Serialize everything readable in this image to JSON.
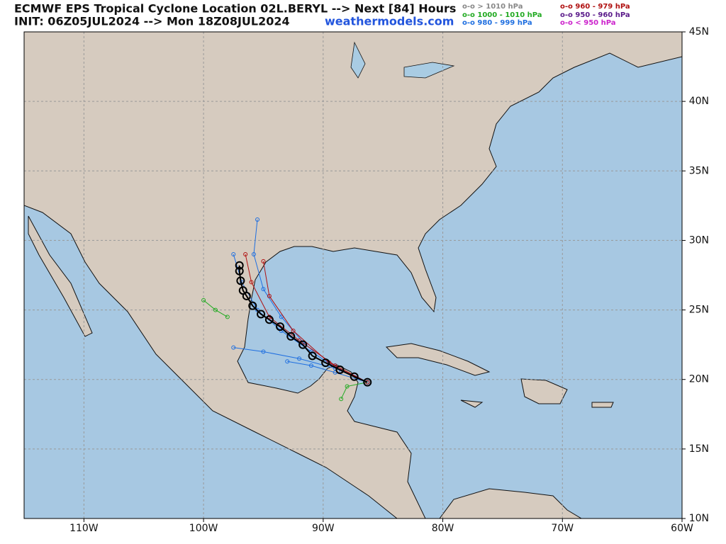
{
  "map": {
    "title": "ECMWF EPS Tropical Cyclone Location 02L.BERYL --> Next [84] Hours",
    "subtitle": "INIT: 06Z05JUL2024 --> Mon 18Z08JUL2024",
    "watermark": "weathermodels.com",
    "legend": [
      {
        "label": "o-o > 1010 hPa",
        "color": "#888888"
      },
      {
        "label": "o-o 1000 - 1010 hPa",
        "color": "#22aa22"
      },
      {
        "label": "o-o 980 - 999 hPa",
        "color": "#1f6fe0"
      },
      {
        "label": "o-o 960 - 979 hPa",
        "color": "#b01010"
      },
      {
        "label": "o-o 950 - 960 hPa",
        "color": "#5a1a8a"
      },
      {
        "label": "o-o < 950 hPa",
        "color": "#cc22cc"
      }
    ],
    "xlim": [
      -115,
      -60
    ],
    "ylim": [
      10,
      45
    ],
    "xticks": [
      {
        "value": -110,
        "label": "110W"
      },
      {
        "value": -100,
        "label": "100W"
      },
      {
        "value": -90,
        "label": "90W"
      },
      {
        "value": -80,
        "label": "80W"
      },
      {
        "value": -70,
        "label": "70W"
      },
      {
        "value": -60,
        "label": "60W"
      }
    ],
    "yticks": [
      {
        "value": 45,
        "label": "45N"
      },
      {
        "value": 40,
        "label": "40N"
      },
      {
        "value": 35,
        "label": "35N"
      },
      {
        "value": 30,
        "label": "30N"
      },
      {
        "value": 25,
        "label": "25N"
      },
      {
        "value": 20,
        "label": "20N"
      },
      {
        "value": 15,
        "label": "15N"
      },
      {
        "value": 10,
        "label": "10N"
      }
    ],
    "tracks": [
      {
        "color": "#1f6fe0",
        "lon": [
          -86.3,
          -89,
          -91.5,
          -93.5,
          -95,
          -95.8,
          -95.5
        ],
        "lat": [
          19.8,
          21,
          22.5,
          24.5,
          26.5,
          29,
          31.5
        ]
      },
      {
        "color": "#1f6fe0",
        "lon": [
          -86.3,
          -89,
          -92,
          -95,
          -97.5
        ],
        "lat": [
          19.8,
          20.8,
          21.5,
          22,
          22.3
        ]
      },
      {
        "color": "#1f6fe0",
        "lon": [
          -86.3,
          -89,
          -91,
          -93
        ],
        "lat": [
          19.8,
          20.5,
          21,
          21.3
        ]
      },
      {
        "color": "#1f6fe0",
        "lon": [
          -86.3,
          -88.5,
          -91,
          -93.5,
          -95.5,
          -96.8,
          -97.5
        ],
        "lat": [
          19.8,
          20.6,
          22,
          23.5,
          25,
          27,
          29
        ]
      },
      {
        "color": "#22aa22",
        "lon": [
          -86.3,
          -88,
          -88.5
        ],
        "lat": [
          19.8,
          19.5,
          18.6
        ]
      },
      {
        "color": "#22aa22",
        "lon": [
          -98,
          -99,
          -100
        ],
        "lat": [
          24.5,
          25,
          25.7
        ]
      },
      {
        "color": "#b01010",
        "lon": [
          -86.3,
          -89,
          -92,
          -94.5,
          -96,
          -96.5
        ],
        "lat": [
          19.8,
          21,
          22.8,
          24.5,
          27,
          29
        ]
      },
      {
        "color": "#b01010",
        "lon": [
          -86.3,
          -89.5,
          -92.5,
          -94.5,
          -95
        ],
        "lat": [
          19.8,
          21.2,
          23.5,
          26,
          28.5
        ]
      }
    ],
    "mean_track": {
      "color": "#000000",
      "lon": [
        -86.3,
        -87.4,
        -88.6,
        -89.8,
        -90.9,
        -91.7,
        -92.7,
        -93.6,
        -94.5,
        -95.2,
        -95.9,
        -96.4,
        -96.7,
        -96.9,
        -97.0,
        -97.0
      ],
      "lat": [
        19.8,
        20.2,
        20.7,
        21.2,
        21.7,
        22.5,
        23.1,
        23.8,
        24.3,
        24.7,
        25.3,
        26.0,
        26.4,
        27.1,
        27.8,
        28.2
      ]
    }
  }
}
